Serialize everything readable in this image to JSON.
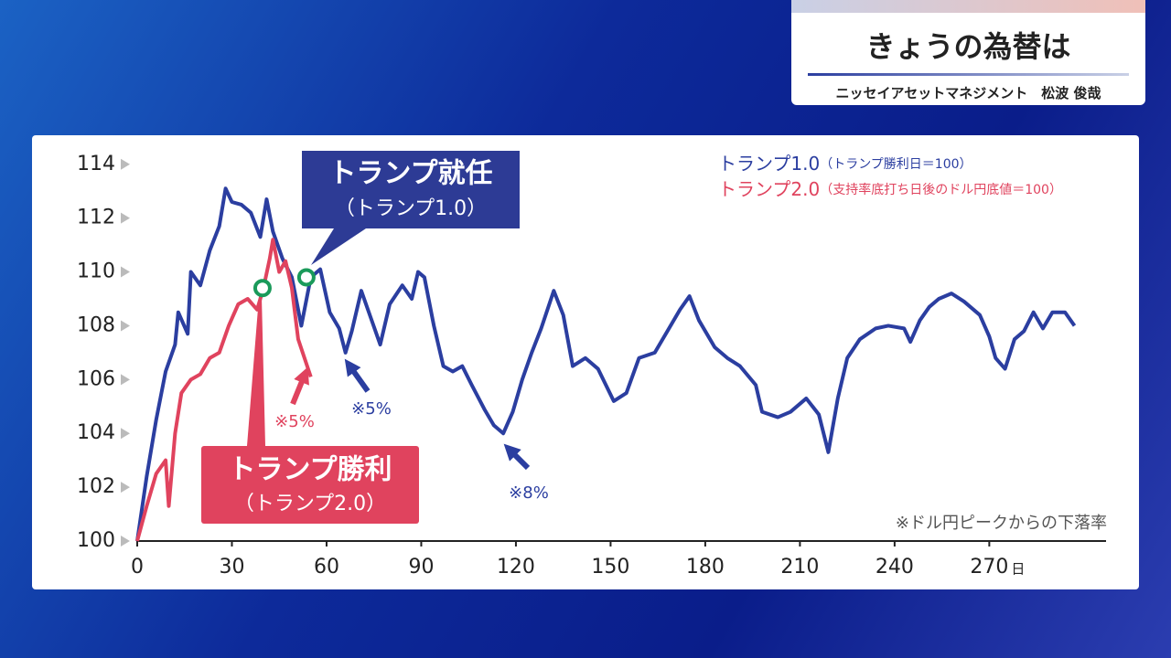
{
  "header": {
    "title": "きょうの為替は",
    "presenter": "ニッセイアセットマネジメント　松波 俊哉"
  },
  "chart_data": {
    "type": "line",
    "x_unit": "日",
    "xlim": [
      0,
      307
    ],
    "xticks": [
      0,
      30,
      60,
      90,
      120,
      150,
      180,
      210,
      240,
      270
    ],
    "ylim": [
      100,
      114.4
    ],
    "yticks": [
      100,
      102,
      104,
      106,
      108,
      110,
      112,
      114
    ],
    "legend": "top-right",
    "series": [
      {
        "name": "トランプ1.0",
        "note": "（トランプ勝利日＝100）",
        "color": "#2b3ea0",
        "x": [
          0,
          3,
          6,
          9,
          12,
          13,
          16,
          17,
          20,
          23,
          26,
          28,
          30,
          33,
          36,
          39,
          41,
          43,
          46,
          49,
          52,
          55,
          58,
          61,
          64,
          66,
          68,
          71,
          74,
          77,
          80,
          84,
          87,
          89,
          91,
          94,
          97,
          100,
          103,
          106,
          110,
          113,
          116,
          119,
          122,
          125,
          128,
          132,
          135,
          138,
          142,
          146,
          151,
          155,
          159,
          164,
          168,
          172,
          175,
          178,
          183,
          187,
          191,
          196,
          198,
          203,
          207,
          212,
          216,
          219,
          222,
          225,
          229,
          234,
          238,
          243,
          245,
          248,
          251,
          254,
          258,
          262,
          267,
          270,
          272,
          275,
          278,
          281,
          284,
          287,
          290,
          294,
          297
        ],
        "values": [
          100,
          102.4,
          104.5,
          106.3,
          107.3,
          108.5,
          107.7,
          110,
          109.5,
          110.8,
          111.7,
          113.1,
          112.6,
          112.5,
          112.2,
          111.3,
          112.7,
          111.5,
          110.5,
          109.8,
          108,
          109.8,
          110.1,
          108.5,
          107.9,
          107,
          107.8,
          109.3,
          108.3,
          107.3,
          108.8,
          109.5,
          109,
          110,
          109.8,
          108,
          106.5,
          106.3,
          106.5,
          105.8,
          104.9,
          104.3,
          104,
          104.8,
          106,
          107,
          107.9,
          109.3,
          108.4,
          106.5,
          106.8,
          106.4,
          105.2,
          105.5,
          106.8,
          107,
          107.8,
          108.6,
          109.1,
          108.2,
          107.2,
          106.8,
          106.5,
          105.8,
          104.8,
          104.6,
          104.8,
          105.3,
          104.7,
          103.3,
          105.3,
          106.8,
          107.5,
          107.9,
          108,
          107.9,
          107.4,
          108.2,
          108.7,
          109,
          109.2,
          108.9,
          108.4,
          107.6,
          106.8,
          106.4,
          107.5,
          107.8,
          108.5,
          107.9,
          108.5,
          108.5,
          108
        ]
      },
      {
        "name": "トランプ2.0",
        "note": "（支持率底打ち日後のドル円底値＝100）",
        "color": "#e0435e",
        "x": [
          0,
          3,
          6,
          9,
          10,
          12,
          14,
          17,
          20,
          23,
          26,
          29,
          32,
          35,
          38,
          40,
          42,
          43,
          45,
          47,
          49,
          51,
          53,
          55
        ],
        "values": [
          100,
          101.3,
          102.5,
          103,
          101.3,
          104,
          105.5,
          106,
          106.2,
          106.8,
          107,
          108,
          108.8,
          109,
          108.6,
          109.4,
          110.5,
          111.2,
          110,
          110.4,
          109.4,
          107.5,
          106.8,
          106.1
        ]
      }
    ],
    "annotations": [
      {
        "text": "トランプ就任",
        "subtext": "（トランプ1.0）",
        "x": 53.6,
        "y": 109.8
      },
      {
        "text": "トランプ勝利",
        "subtext": "（トランプ2.0）",
        "x": 39.7,
        "y": 109.4
      }
    ],
    "drop_labels": [
      "※5%",
      "※5%",
      "※8%"
    ],
    "footnote": "※ドル円ピークからの下落率"
  }
}
